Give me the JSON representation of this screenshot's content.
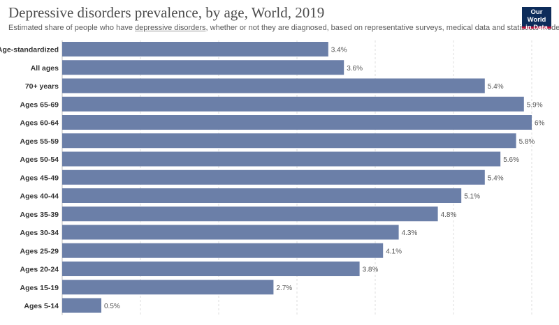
{
  "header": {
    "title": "Depressive disorders prevalence, by age, World, 2019",
    "subtitle_before": "Estimated share of people who have ",
    "subtitle_term": "depressive disorders",
    "subtitle_after": ", whether or not they are diagnosed, based on representative surveys, medical data and statistical modelling."
  },
  "logo": {
    "line1": "Our World",
    "line2": "in Data",
    "bg_color": "#0d2c5a",
    "accent_color": "#b8123b"
  },
  "chart_data": {
    "type": "bar",
    "orientation": "horizontal",
    "unit": "%",
    "bar_color": "#6b7fa8",
    "xlim": [
      0,
      6
    ],
    "grid": "vertical dashed",
    "categories": [
      "Age-standardized",
      "All ages",
      "70+ years",
      "Ages 65-69",
      "Ages 60-64",
      "Ages 55-59",
      "Ages 50-54",
      "Ages 45-49",
      "Ages 40-44",
      "Ages 35-39",
      "Ages 30-34",
      "Ages 25-29",
      "Ages 20-24",
      "Ages 15-19",
      "Ages 5-14"
    ],
    "values": [
      3.4,
      3.6,
      5.4,
      5.9,
      6,
      5.8,
      5.6,
      5.4,
      5.1,
      4.8,
      4.3,
      4.1,
      3.8,
      2.7,
      0.5
    ],
    "value_labels": [
      "3.4%",
      "3.6%",
      "5.4%",
      "5.9%",
      "6%",
      "5.8%",
      "5.6%",
      "5.4%",
      "5.1%",
      "4.8%",
      "4.3%",
      "4.1%",
      "3.8%",
      "2.7%",
      "0.5%"
    ]
  }
}
